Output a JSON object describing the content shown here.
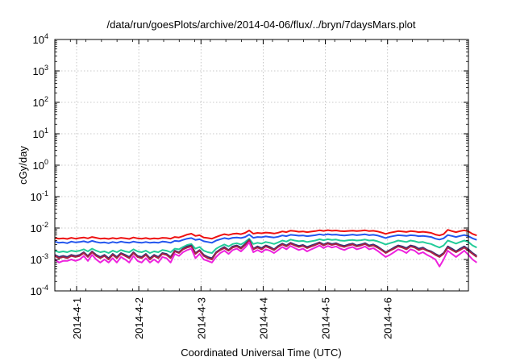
{
  "chart_data": {
    "type": "line",
    "title": "/data/run/goesPlots/archive/2014-04-06/flux/../bryn/7daysMars.plot",
    "xlabel": "Coordinated Universal Time (UTC)",
    "ylabel": "cGy/day",
    "yscale": "log",
    "ylim": [
      0.0001,
      10000
    ],
    "y_ticks": [
      {
        "value": 0.0001,
        "base": "10",
        "exp": "-4"
      },
      {
        "value": 0.001,
        "base": "10",
        "exp": "-3"
      },
      {
        "value": 0.01,
        "base": "10",
        "exp": "-2"
      },
      {
        "value": 0.1,
        "base": "10",
        "exp": "-1"
      },
      {
        "value": 1,
        "base": "10",
        "exp": "0"
      },
      {
        "value": 10,
        "base": "10",
        "exp": "1"
      },
      {
        "value": 100,
        "base": "10",
        "exp": "2"
      },
      {
        "value": 1000,
        "base": "10",
        "exp": "3"
      },
      {
        "value": 10000,
        "base": "10",
        "exp": "4"
      }
    ],
    "x_ticks": [
      "2014-4-1",
      "2014-4-2",
      "2014-4-3",
      "2014-4-4",
      "2014-4-5",
      "2014-4-6"
    ],
    "xlim_days": [
      0.0,
      6.65
    ],
    "x_tick_days": [
      0.35,
      1.35,
      2.35,
      3.35,
      4.35,
      5.35
    ],
    "x_step_days": 0.0665,
    "grid": true,
    "legend": "none",
    "series": [
      {
        "color": "#ee1111",
        "values": [
          0.0048,
          0.0046,
          0.0047,
          0.0045,
          0.0049,
          0.0046,
          0.0048,
          0.005,
          0.0047,
          0.0052,
          0.0049,
          0.0046,
          0.0047,
          0.0045,
          0.0048,
          0.0046,
          0.0049,
          0.0047,
          0.0045,
          0.005,
          0.0047,
          0.0046,
          0.0048,
          0.0045,
          0.0047,
          0.0046,
          0.0049,
          0.0048,
          0.0046,
          0.0052,
          0.005,
          0.0055,
          0.0062,
          0.0066,
          0.0056,
          0.0059,
          0.005,
          0.0048,
          0.0046,
          0.0052,
          0.0058,
          0.0064,
          0.006,
          0.0065,
          0.0067,
          0.0064,
          0.007,
          0.0084,
          0.0066,
          0.007,
          0.0068,
          0.0072,
          0.007,
          0.0067,
          0.0071,
          0.0078,
          0.0074,
          0.0083,
          0.008,
          0.0076,
          0.0078,
          0.0074,
          0.0077,
          0.008,
          0.0085,
          0.0081,
          0.0086,
          0.0082,
          0.0084,
          0.008,
          0.0079,
          0.0081,
          0.0083,
          0.008,
          0.0082,
          0.0085,
          0.008,
          0.0082,
          0.0078,
          0.0072,
          0.0065,
          0.0071,
          0.0075,
          0.008,
          0.0078,
          0.0075,
          0.008,
          0.0078,
          0.0074,
          0.0076,
          0.0073,
          0.007,
          0.0062,
          0.0058,
          0.0064,
          0.0088,
          0.008,
          0.0074,
          0.008,
          0.0085,
          0.0078,
          0.0065,
          0.0058
        ]
      },
      {
        "color": "#2255ee",
        "values": [
          0.0037,
          0.0034,
          0.0035,
          0.0033,
          0.0037,
          0.0035,
          0.0036,
          0.0038,
          0.0035,
          0.0039,
          0.0036,
          0.0034,
          0.0035,
          0.0033,
          0.0036,
          0.0034,
          0.0037,
          0.0035,
          0.0034,
          0.0037,
          0.0035,
          0.0034,
          0.0036,
          0.0034,
          0.0035,
          0.0034,
          0.0037,
          0.0036,
          0.0034,
          0.0039,
          0.0038,
          0.0042,
          0.0046,
          0.0048,
          0.0042,
          0.0044,
          0.0038,
          0.0036,
          0.0034,
          0.004,
          0.0044,
          0.0048,
          0.0045,
          0.0049,
          0.005,
          0.0048,
          0.0052,
          0.0062,
          0.0049,
          0.0052,
          0.0051,
          0.0054,
          0.0052,
          0.005,
          0.0053,
          0.0058,
          0.0055,
          0.0061,
          0.0059,
          0.0057,
          0.0058,
          0.0055,
          0.0057,
          0.0059,
          0.0063,
          0.006,
          0.0064,
          0.0061,
          0.0062,
          0.0059,
          0.0058,
          0.006,
          0.0062,
          0.0059,
          0.0061,
          0.0063,
          0.0059,
          0.0061,
          0.0058,
          0.0053,
          0.0048,
          0.0053,
          0.0056,
          0.0059,
          0.0058,
          0.0056,
          0.0059,
          0.0058,
          0.0055,
          0.0056,
          0.0054,
          0.0052,
          0.0046,
          0.0043,
          0.0047,
          0.006,
          0.0056,
          0.0052,
          0.0056,
          0.006,
          0.0055,
          0.0047,
          0.0042
        ]
      },
      {
        "color": "#22cc99",
        "values": [
          0.0019,
          0.0017,
          0.0018,
          0.0017,
          0.0019,
          0.0018,
          0.0019,
          0.0021,
          0.0018,
          0.0022,
          0.0019,
          0.0017,
          0.0018,
          0.0016,
          0.0019,
          0.0017,
          0.002,
          0.0018,
          0.0017,
          0.0021,
          0.0018,
          0.0017,
          0.0019,
          0.0016,
          0.0018,
          0.0017,
          0.002,
          0.0019,
          0.0017,
          0.0022,
          0.0021,
          0.0025,
          0.0029,
          0.0031,
          0.0022,
          0.0025,
          0.0019,
          0.0017,
          0.0016,
          0.0022,
          0.0026,
          0.003,
          0.0026,
          0.0031,
          0.0033,
          0.003,
          0.0036,
          0.0046,
          0.0031,
          0.0034,
          0.0032,
          0.0036,
          0.0034,
          0.0031,
          0.0035,
          0.004,
          0.0037,
          0.0043,
          0.004,
          0.0038,
          0.0039,
          0.0036,
          0.0038,
          0.004,
          0.0044,
          0.0041,
          0.0044,
          0.0042,
          0.0043,
          0.004,
          0.0039,
          0.0041,
          0.0042,
          0.004,
          0.0041,
          0.0043,
          0.004,
          0.0041,
          0.0038,
          0.0034,
          0.003,
          0.0033,
          0.0036,
          0.004,
          0.0038,
          0.0036,
          0.004,
          0.0038,
          0.0035,
          0.0036,
          0.0033,
          0.0031,
          0.0027,
          0.0024,
          0.0028,
          0.004,
          0.0036,
          0.0032,
          0.0036,
          0.004,
          0.0036,
          0.0028,
          0.0024
        ]
      },
      {
        "color": "#333377",
        "values": [
          0.0014,
          0.0012,
          0.0013,
          0.0012,
          0.0014,
          0.0013,
          0.0014,
          0.0017,
          0.0013,
          0.0018,
          0.0014,
          0.0012,
          0.0014,
          0.0011,
          0.0015,
          0.0012,
          0.0016,
          0.0014,
          0.0012,
          0.0017,
          0.0013,
          0.0012,
          0.0015,
          0.0011,
          0.0014,
          0.0012,
          0.0016,
          0.0015,
          0.0012,
          0.0019,
          0.0017,
          0.0022,
          0.0026,
          0.0028,
          0.0016,
          0.002,
          0.0014,
          0.0012,
          0.0011,
          0.0017,
          0.0021,
          0.0025,
          0.002,
          0.0026,
          0.0028,
          0.0024,
          0.0031,
          0.0042,
          0.0022,
          0.0026,
          0.0023,
          0.0028,
          0.0025,
          0.0021,
          0.0027,
          0.0032,
          0.0028,
          0.0034,
          0.003,
          0.0027,
          0.0029,
          0.0025,
          0.0028,
          0.0031,
          0.0035,
          0.003,
          0.0034,
          0.0031,
          0.0033,
          0.0029,
          0.0027,
          0.003,
          0.0032,
          0.0028,
          0.003,
          0.0033,
          0.0028,
          0.003,
          0.0026,
          0.0021,
          0.0017,
          0.002,
          0.0024,
          0.0028,
          0.0026,
          0.0023,
          0.0028,
          0.0026,
          0.0022,
          0.0024,
          0.002,
          0.0018,
          0.0015,
          0.0013,
          0.0016,
          0.0026,
          0.0022,
          0.0018,
          0.0022,
          0.0026,
          0.0021,
          0.0016,
          0.0013
        ]
      },
      {
        "color": "#aa2244",
        "values": [
          0.0013,
          0.0011,
          0.0012,
          0.0011,
          0.0013,
          0.0012,
          0.0013,
          0.0016,
          0.0012,
          0.0017,
          0.0013,
          0.0011,
          0.0013,
          0.001,
          0.0014,
          0.0011,
          0.0015,
          0.0013,
          0.0011,
          0.0016,
          0.0012,
          0.0011,
          0.0014,
          0.001,
          0.0013,
          0.0011,
          0.0015,
          0.0014,
          0.0011,
          0.0018,
          0.0016,
          0.0021,
          0.0024,
          0.0026,
          0.0015,
          0.0019,
          0.0013,
          0.0011,
          0.001,
          0.0016,
          0.002,
          0.0023,
          0.0019,
          0.0024,
          0.0026,
          0.0022,
          0.0029,
          0.004,
          0.0021,
          0.0024,
          0.0021,
          0.0026,
          0.0023,
          0.002,
          0.0025,
          0.003,
          0.0026,
          0.0032,
          0.0028,
          0.0025,
          0.0027,
          0.0023,
          0.0026,
          0.0029,
          0.0033,
          0.0028,
          0.0032,
          0.0029,
          0.0031,
          0.0027,
          0.0025,
          0.0028,
          0.003,
          0.0026,
          0.0028,
          0.0031,
          0.0026,
          0.0028,
          0.0024,
          0.002,
          0.0016,
          0.0019,
          0.0022,
          0.0026,
          0.0024,
          0.0021,
          0.0026,
          0.0024,
          0.002,
          0.0022,
          0.0019,
          0.0017,
          0.0014,
          0.0012,
          0.0015,
          0.0024,
          0.002,
          0.0017,
          0.002,
          0.0024,
          0.0019,
          0.0015,
          0.0012
        ]
      },
      {
        "color": "#ee22dd",
        "values": [
          0.001,
          0.0008,
          0.0009,
          0.0009,
          0.001,
          0.0009,
          0.001,
          0.0013,
          0.0009,
          0.0014,
          0.001,
          0.0008,
          0.001,
          0.0008,
          0.0011,
          0.0008,
          0.0012,
          0.001,
          0.0008,
          0.0013,
          0.0009,
          0.0008,
          0.0011,
          0.0008,
          0.001,
          0.0008,
          0.0012,
          0.0011,
          0.0008,
          0.0015,
          0.0013,
          0.0017,
          0.002,
          0.0022,
          0.0011,
          0.0015,
          0.001,
          0.0009,
          0.0008,
          0.0012,
          0.0016,
          0.0019,
          0.0015,
          0.002,
          0.0022,
          0.0018,
          0.0024,
          0.0035,
          0.0017,
          0.002,
          0.0017,
          0.0021,
          0.0019,
          0.0016,
          0.002,
          0.0025,
          0.0021,
          0.0027,
          0.0023,
          0.002,
          0.0022,
          0.0018,
          0.0021,
          0.0024,
          0.0028,
          0.0023,
          0.0027,
          0.0024,
          0.0026,
          0.0022,
          0.002,
          0.0023,
          0.0025,
          0.0021,
          0.0023,
          0.0026,
          0.0021,
          0.0023,
          0.0019,
          0.0015,
          0.0012,
          0.0014,
          0.0017,
          0.0021,
          0.0019,
          0.0016,
          0.0021,
          0.0019,
          0.0015,
          0.0017,
          0.0014,
          0.0012,
          0.001,
          0.0006,
          0.001,
          0.0019,
          0.0015,
          0.0012,
          0.0015,
          0.0019,
          0.0014,
          0.001,
          0.0008
        ]
      }
    ]
  }
}
